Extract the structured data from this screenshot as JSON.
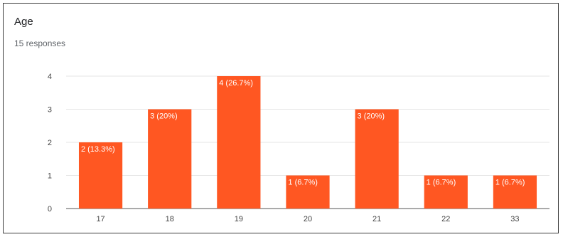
{
  "card": {
    "title": "Age",
    "subtitle": "15 responses"
  },
  "colors": {
    "bar": "#ff5722",
    "grid": "#e6e6e6",
    "axis": "#555555"
  },
  "chart_data": {
    "type": "bar",
    "title": "Age",
    "subtitle": "15 responses",
    "categories": [
      "17",
      "18",
      "19",
      "20",
      "21",
      "22",
      "33"
    ],
    "values": [
      2,
      3,
      4,
      1,
      3,
      1,
      1
    ],
    "data_labels": [
      "2 (13.3%)",
      "3 (20%)",
      "4 (26.7%)",
      "1 (6.7%)",
      "3 (20%)",
      "1 (6.7%)",
      "1 (6.7%)"
    ],
    "yticks": [
      "0",
      "1",
      "2",
      "3",
      "4"
    ],
    "ylim": [
      0,
      4
    ],
    "grid": true,
    "legend": "none"
  }
}
